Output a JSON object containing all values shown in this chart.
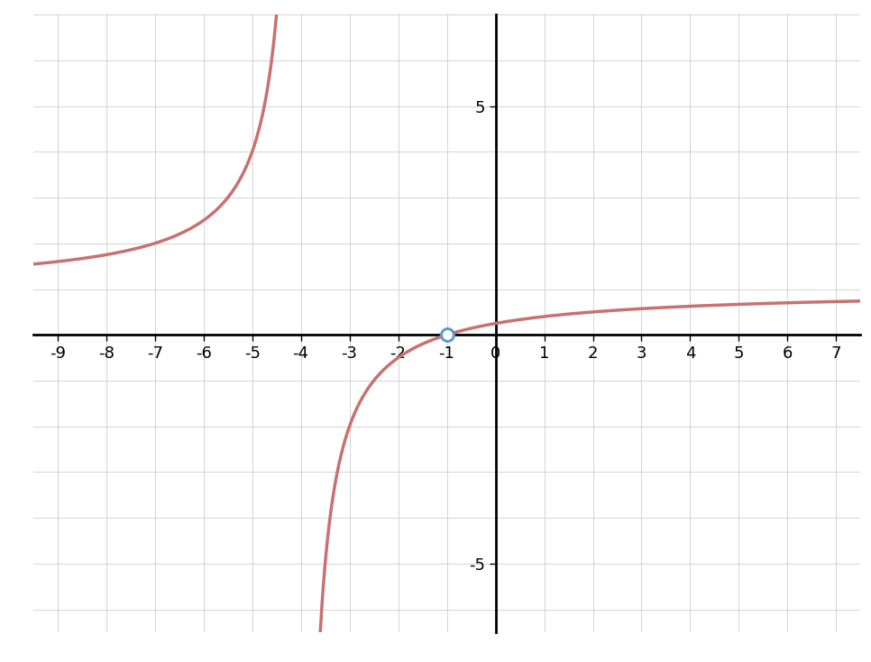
{
  "xlim": [
    -9.5,
    7.5
  ],
  "ylim": [
    -6.5,
    7.0
  ],
  "xticks": [
    -9,
    -8,
    -7,
    -6,
    -5,
    -4,
    -3,
    -2,
    -1,
    0,
    1,
    2,
    3,
    4,
    5,
    6,
    7
  ],
  "yticks": [
    -5,
    5
  ],
  "vertical_asymptote": -4,
  "open_circle": [
    -1,
    0
  ],
  "curve_color": "#c97070",
  "curve_linewidth": 2.5,
  "open_circle_color": "#5b9bd5",
  "open_circle_edgewidth": 2.2,
  "open_circle_size": 10,
  "background_color": "#ffffff",
  "grid_color": "#cccccc",
  "axis_color": "#000000",
  "axis_linewidth": 2.0,
  "numerator_shift": 1,
  "denominator_shift": 4,
  "tick_fontsize": 13
}
